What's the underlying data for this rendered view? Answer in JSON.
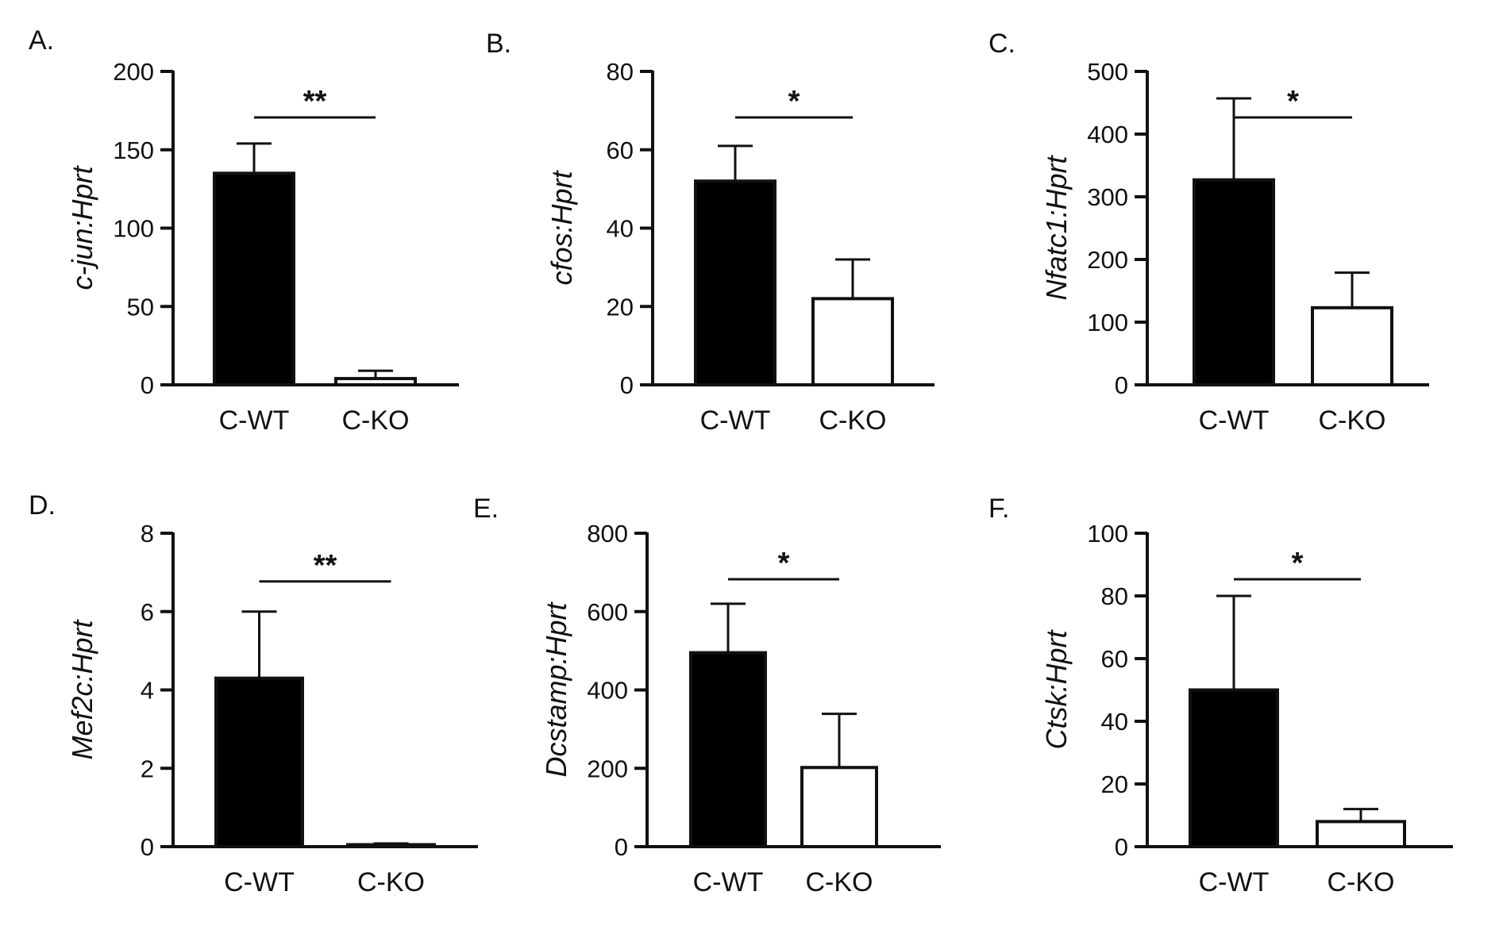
{
  "chart_data": [
    {
      "type": "bar",
      "panel": "A.",
      "ylabel": "c-jun:Hprt",
      "categories": [
        "C-WT",
        "C-KO"
      ],
      "values": [
        135,
        4
      ],
      "errors": [
        19,
        5
      ],
      "fills": [
        "#000000",
        "#ffffff"
      ],
      "ylim": [
        0,
        200
      ],
      "yticks": [
        "0",
        "50",
        "100",
        "150",
        "200"
      ],
      "significance": "**",
      "grid": false
    },
    {
      "type": "bar",
      "panel": "B.",
      "ylabel": "cfos:Hprt",
      "categories": [
        "C-WT",
        "C-KO"
      ],
      "values": [
        52,
        22
      ],
      "errors": [
        9,
        10
      ],
      "fills": [
        "#000000",
        "#ffffff"
      ],
      "ylim": [
        0,
        80
      ],
      "yticks": [
        "0",
        "20",
        "40",
        "60",
        "80"
      ],
      "significance": "*",
      "grid": false
    },
    {
      "type": "bar",
      "panel": "C.",
      "ylabel": "Nfatc1:Hprt",
      "categories": [
        "C-WT",
        "C-KO"
      ],
      "values": [
        327,
        123
      ],
      "errors": [
        130,
        56
      ],
      "fills": [
        "#000000",
        "#ffffff"
      ],
      "ylim": [
        0,
        500
      ],
      "yticks": [
        "0",
        "100",
        "200",
        "300",
        "400",
        "500"
      ],
      "significance": "*",
      "grid": false
    },
    {
      "type": "bar",
      "panel": "D.",
      "ylabel": "Mef2c:Hprt",
      "categories": [
        "C-WT",
        "C-KO"
      ],
      "values": [
        4.3,
        0.05
      ],
      "errors": [
        1.7,
        0.03
      ],
      "fills": [
        "#000000",
        "#ffffff"
      ],
      "ylim": [
        0,
        8
      ],
      "yticks": [
        "0",
        "2",
        "4",
        "6",
        "8"
      ],
      "significance": "**",
      "grid": false
    },
    {
      "type": "bar",
      "panel": "E.",
      "ylabel": "Dcstamp:Hprt",
      "categories": [
        "C-WT",
        "C-KO"
      ],
      "values": [
        495,
        202
      ],
      "errors": [
        125,
        137
      ],
      "fills": [
        "#000000",
        "#ffffff"
      ],
      "ylim": [
        0,
        800
      ],
      "yticks": [
        "0",
        "200",
        "400",
        "600",
        "800"
      ],
      "significance": "*",
      "grid": false
    },
    {
      "type": "bar",
      "panel": "F.",
      "ylabel": "Ctsk:Hprt",
      "categories": [
        "C-WT",
        "C-KO"
      ],
      "values": [
        50,
        8
      ],
      "errors": [
        30,
        4
      ],
      "fills": [
        "#000000",
        "#ffffff"
      ],
      "ylim": [
        0,
        100
      ],
      "yticks": [
        "0",
        "20",
        "40",
        "60",
        "80",
        "100"
      ],
      "significance": "*",
      "grid": false
    }
  ]
}
